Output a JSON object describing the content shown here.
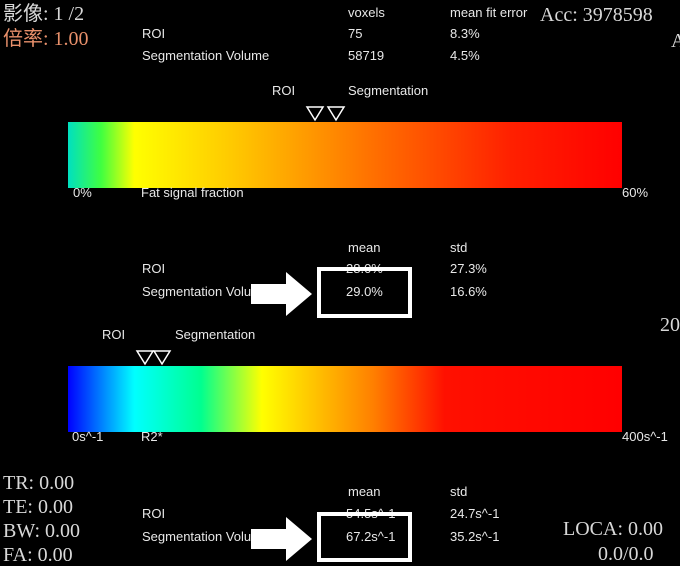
{
  "overlay": {
    "image": "影像: 1 /2",
    "zoom": "倍率: 1.00",
    "acc": "Acc: 3978598",
    "right_edge": "A",
    "right_mid": "20",
    "tr": "TR: 0.00",
    "te": "TE: 0.00",
    "bw": "BW: 0.00",
    "fa": "FA: 0.00",
    "loca": "LOCA: 0.00",
    "loca_value": "0.0/0.0"
  },
  "fit_table": {
    "columns": [
      "voxels",
      "mean fit error"
    ],
    "rows": [
      [
        "ROI",
        "75",
        "8.3%"
      ],
      [
        "Segmentation Volume",
        "58719",
        "4.5%"
      ]
    ]
  },
  "fat_fraction_scale": {
    "markers": [
      "ROI",
      "Segmentation"
    ],
    "min": "0%",
    "label": "Fat signal fraction",
    "max": "60%"
  },
  "fat_fraction_table": {
    "columns": [
      "mean",
      "std"
    ],
    "rows": [
      [
        "ROI",
        "28.0%",
        "27.3%"
      ],
      [
        "Segmentation Volume",
        "29.0%",
        "16.6%"
      ]
    ]
  },
  "r2_scale": {
    "markers": [
      "ROI",
      "Segmentation"
    ],
    "min": "0s^-1",
    "label": "R2*",
    "max": "400s^-1"
  },
  "r2_table": {
    "columns": [
      "mean",
      "std"
    ],
    "rows": [
      [
        "ROI",
        "54.5s^-1",
        "24.7s^-1"
      ],
      [
        "Segmentation Volume",
        "67.2s^-1",
        "35.2s^-1"
      ]
    ]
  }
}
